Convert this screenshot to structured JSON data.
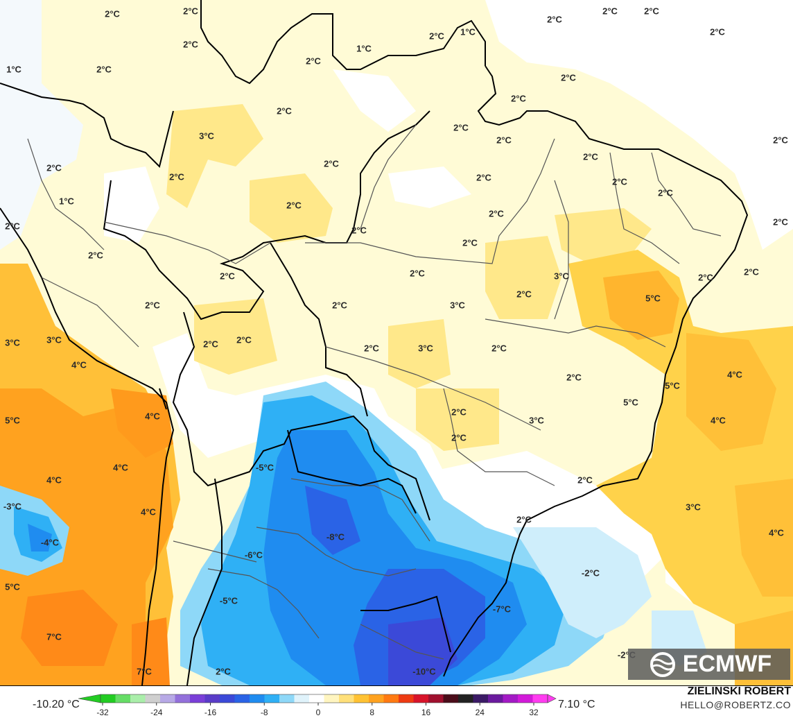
{
  "map": {
    "labels": [
      {
        "text": "2°C"
      },
      {
        "text": "2°C"
      },
      {
        "text": "2°C"
      },
      {
        "text": "2°C"
      },
      {
        "text": "2°C"
      },
      {
        "text": "2°C"
      },
      {
        "text": "1°C"
      },
      {
        "text": "2°C"
      },
      {
        "text": "1°C"
      },
      {
        "text": "2°C"
      },
      {
        "text": "2°C"
      },
      {
        "text": "1°C"
      },
      {
        "text": "2°C"
      },
      {
        "text": "2°C"
      },
      {
        "text": "2°C"
      },
      {
        "text": "2°C"
      },
      {
        "text": "3°C"
      },
      {
        "text": "2°C"
      },
      {
        "text": "2°C"
      },
      {
        "text": "2°C"
      },
      {
        "text": "2°C"
      },
      {
        "text": "2°C"
      },
      {
        "text": "2°C"
      },
      {
        "text": "2°C"
      },
      {
        "text": "2°C"
      },
      {
        "text": "2°C"
      },
      {
        "text": "2°C"
      },
      {
        "text": "1°C"
      },
      {
        "text": "2°C"
      },
      {
        "text": "2°C"
      },
      {
        "text": "2°C"
      },
      {
        "text": "2°C"
      },
      {
        "text": "2°C"
      },
      {
        "text": "2°C"
      },
      {
        "text": "2°C"
      },
      {
        "text": "2°C"
      },
      {
        "text": "3°C"
      },
      {
        "text": "2°C"
      },
      {
        "text": "2°C"
      },
      {
        "text": "2°C"
      },
      {
        "text": "2°C"
      },
      {
        "text": "2°C"
      },
      {
        "text": "2°C"
      },
      {
        "text": "5°C"
      },
      {
        "text": "3°C"
      },
      {
        "text": "3°C"
      },
      {
        "text": "4°C"
      },
      {
        "text": "2°C"
      },
      {
        "text": "2°C"
      },
      {
        "text": "3°C"
      },
      {
        "text": "2°C"
      },
      {
        "text": "2°C"
      },
      {
        "text": "3°C"
      },
      {
        "text": "4°C"
      },
      {
        "text": "5°C"
      },
      {
        "text": "5°C"
      },
      {
        "text": "4°C"
      },
      {
        "text": "2°C"
      },
      {
        "text": "4°C"
      },
      {
        "text": "5°C"
      },
      {
        "text": "4°C"
      },
      {
        "text": "3°C"
      },
      {
        "text": "2°C"
      },
      {
        "text": "2°C"
      },
      {
        "text": "4°C"
      },
      {
        "text": "-3°C"
      },
      {
        "text": "4°C"
      },
      {
        "text": "-4°C"
      },
      {
        "text": "-5°C"
      },
      {
        "text": "-8°C"
      },
      {
        "text": "-6°C"
      },
      {
        "text": "-2°C"
      },
      {
        "text": "5°C"
      },
      {
        "text": "-5°C"
      },
      {
        "text": "-7°C"
      },
      {
        "text": "7°C"
      },
      {
        "text": "-2°C"
      },
      {
        "text": "7°C"
      },
      {
        "text": "2°C"
      },
      {
        "text": "-10°C"
      },
      {
        "text": "2°C"
      },
      {
        "text": "3°C"
      },
      {
        "text": "4°C"
      },
      {
        "text": "2°C"
      }
    ],
    "logo_text": "ECMWF"
  },
  "colorbar": {
    "min_label": "-10.20 °C",
    "max_label": "7.10 °C",
    "ticks": [
      "-32",
      "-24",
      "-16",
      "-8",
      "0",
      "8",
      "16",
      "24",
      "32"
    ],
    "colors": [
      "#22cc22",
      "#66dd66",
      "#aaeeaa",
      "#cfcfcf",
      "#b7a9e6",
      "#9370db",
      "#7a3fd8",
      "#5a3cc8",
      "#3b49d8",
      "#2a63e6",
      "#1f8cf0",
      "#2fb0f5",
      "#8ed8f8",
      "#e0f3fb",
      "#ffffff",
      "#fff5c0",
      "#ffe07a",
      "#ffc233",
      "#ffa21f",
      "#ff7a12",
      "#ee3b12",
      "#d8142a",
      "#a0102e",
      "#4a0d1a",
      "#222222",
      "#3b1a66",
      "#6a1a9e",
      "#a31ac5",
      "#d21ad9",
      "#ff3cf0"
    ]
  },
  "footer": {
    "author": "ZIELINSKI ROBERT",
    "email": "HELLO@ROBERTZ.CO"
  }
}
